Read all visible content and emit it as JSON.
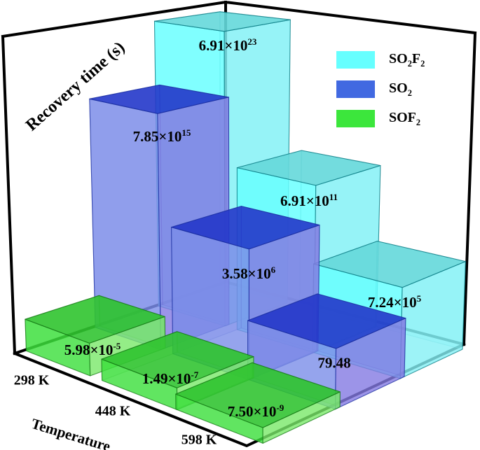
{
  "figure": {
    "background": "#FFFFFF",
    "frame_color": "#000000"
  },
  "chart_data": {
    "type": "bar",
    "projection": "3d",
    "title": "",
    "zlabel": "Recovery time (s)",
    "xlabel": "Temperature",
    "categories": [
      "298 K",
      "448 K",
      "598 K"
    ],
    "value_scale": "log",
    "grid": false,
    "legend_position": "top-right",
    "series": [
      {
        "name": "SO2F2",
        "values": [
          6.91e+23,
          691000000000.0,
          724000.0
        ],
        "labels": [
          "6.91×10^23",
          "6.91×10^11",
          "7.24×10^5"
        ],
        "colors": {
          "legend": "#66FFFF",
          "top": "#64D7DA",
          "front": "#66FFFF",
          "side": "#85F0F5",
          "edge": "#0B7C84"
        }
      },
      {
        "name": "SO2",
        "values": [
          7850000000000000.0,
          3580000.0,
          79.48
        ],
        "labels": [
          "7.85×10^15",
          "3.58×10^6",
          "79.48"
        ],
        "colors": {
          "legend": "#4169E1",
          "top": "#2135C8",
          "front": "#7A8DE9",
          "side": "#8379E2",
          "edge": "#1B2FA0"
        }
      },
      {
        "name": "SOF2",
        "values": [
          5.98e-05,
          1.49e-07,
          7.5e-09
        ],
        "labels": [
          "5.98×10^-5",
          "1.49×10^-7",
          "7.50×10^-9"
        ],
        "colors": {
          "legend": "#3CE63C",
          "top": "#2DC32D",
          "front": "#3ADF3A",
          "side": "#79E869",
          "edge": "#157815"
        }
      }
    ]
  }
}
